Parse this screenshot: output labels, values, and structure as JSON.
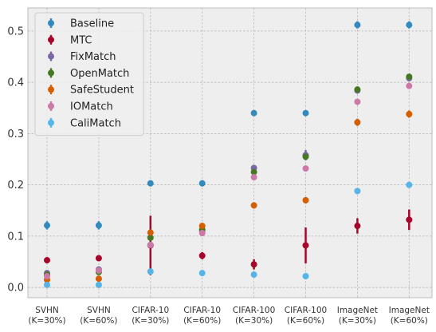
{
  "chart_data": {
    "type": "scatter",
    "style": "errorbar",
    "categories": [
      [
        "SVHN",
        "(K=30%)"
      ],
      [
        "SVHN",
        "(K=60%)"
      ],
      [
        "CIFAR-10",
        "(K=30%)"
      ],
      [
        "CIFAR-10",
        "(K=60%)"
      ],
      [
        "CIFAR-100",
        "(K=30%)"
      ],
      [
        "CIFAR-100",
        "(K=60%)"
      ],
      [
        "ImageNet",
        "(K=30%)"
      ],
      [
        "ImageNet",
        "(K=60%)"
      ]
    ],
    "ylim": [
      -0.02,
      0.545
    ],
    "yticks": [
      0.0,
      0.1,
      0.2,
      0.3,
      0.4,
      0.5
    ],
    "ytick_labels": [
      "0.0",
      "0.1",
      "0.2",
      "0.3",
      "0.4",
      "0.5"
    ],
    "grid": true,
    "legend_position": "top-left",
    "series": [
      {
        "name": "Baseline",
        "color": "#348ABD",
        "values": [
          0.121,
          0.121,
          0.203,
          0.203,
          0.34,
          0.34,
          0.512,
          0.512
        ],
        "errors": [
          0.008,
          0.008,
          0.006,
          0.006,
          0.004,
          0.004,
          0.007,
          0.007
        ]
      },
      {
        "name": "MTC",
        "color": "#A60628",
        "values": [
          0.053,
          0.057,
          0.082,
          0.062,
          0.045,
          0.082,
          0.12,
          0.132
        ],
        "errors": [
          0.006,
          0.005,
          0.058,
          0.007,
          0.01,
          0.035,
          0.015,
          0.02
        ]
      },
      {
        "name": "FixMatch",
        "color": "#7A68A6",
        "values": [
          0.028,
          0.035,
          0.083,
          0.11,
          0.233,
          0.258,
          0.384,
          0.408
        ],
        "errors": [
          0.004,
          0.004,
          0.005,
          0.005,
          0.005,
          0.01,
          0.005,
          0.005
        ]
      },
      {
        "name": "OpenMatch",
        "color": "#467821",
        "values": [
          0.025,
          0.03,
          0.097,
          0.113,
          0.225,
          0.255,
          0.386,
          0.411
        ],
        "errors": [
          0.003,
          0.003,
          0.005,
          0.005,
          0.005,
          0.005,
          0.005,
          0.005
        ]
      },
      {
        "name": "SafeStudent",
        "color": "#D55E00",
        "values": [
          0.015,
          0.017,
          0.107,
          0.12,
          0.16,
          0.17,
          0.322,
          0.338
        ],
        "errors": [
          0.003,
          0.003,
          0.005,
          0.005,
          0.006,
          0.006,
          0.007,
          0.007
        ]
      },
      {
        "name": "IOMatch",
        "color": "#CC79A7",
        "values": [
          0.022,
          0.033,
          0.083,
          0.106,
          0.215,
          0.232,
          0.362,
          0.393
        ],
        "errors": [
          0.003,
          0.003,
          0.004,
          0.004,
          0.004,
          0.004,
          0.004,
          0.004
        ]
      },
      {
        "name": "CaliMatch",
        "color": "#56B4E9",
        "values": [
          0.005,
          0.005,
          0.031,
          0.028,
          0.025,
          0.022,
          0.188,
          0.2
        ],
        "errors": [
          0.002,
          0.002,
          0.003,
          0.003,
          0.003,
          0.003,
          0.004,
          0.003
        ]
      }
    ]
  }
}
